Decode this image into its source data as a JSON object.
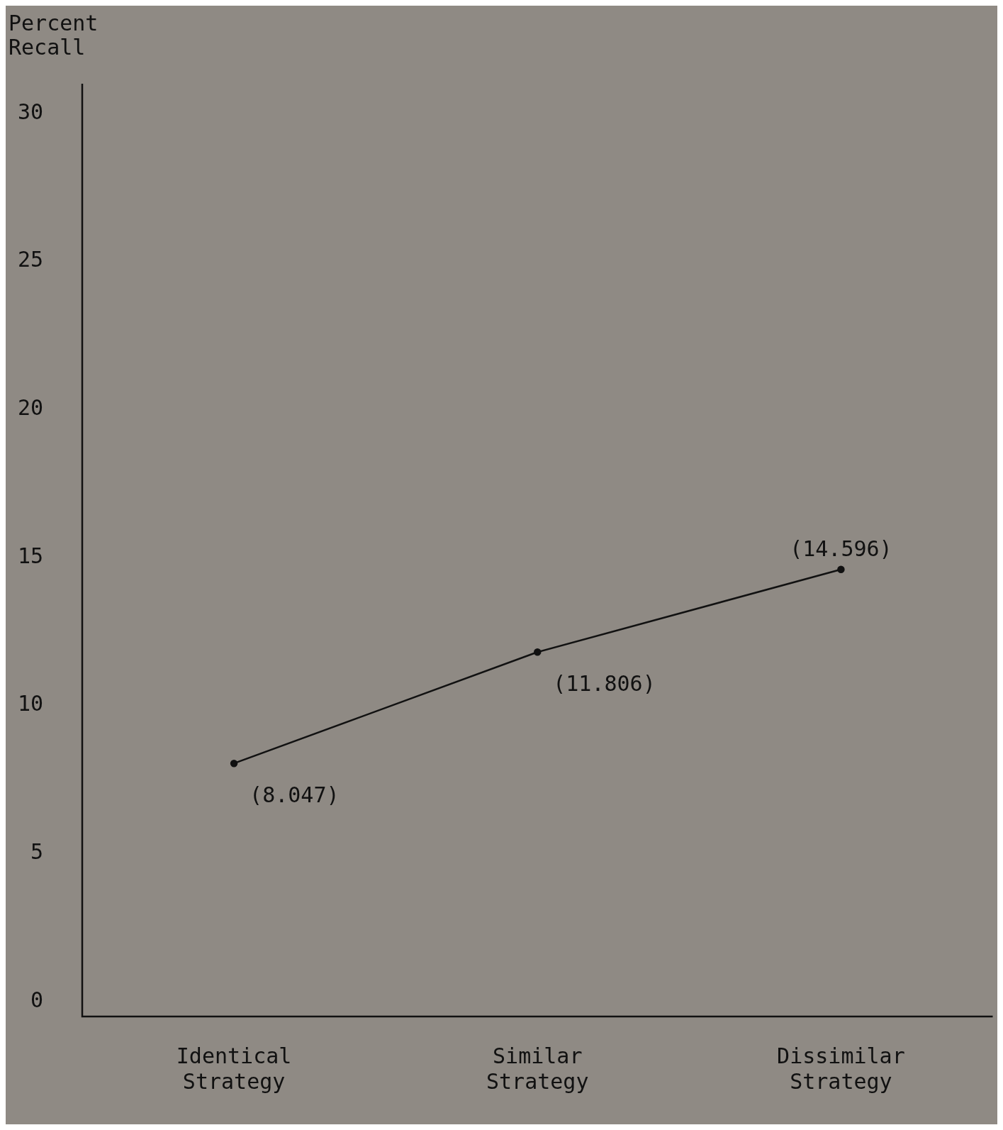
{
  "chart_data": {
    "type": "line",
    "ylabel": "Percent\nRecall",
    "categories": [
      "Identical\nStrategy",
      "Similar\nStrategy",
      "Dissimilar\nStrategy"
    ],
    "series": [
      {
        "color": "#111111",
        "values": [
          8.047,
          11.806,
          14.596
        ],
        "value_labels": [
          "(8.047)",
          "(11.806)",
          "(14.596)"
        ]
      }
    ],
    "ylim": [
      -0.5,
      31
    ],
    "yticks": [
      0,
      5,
      10,
      15,
      20,
      25,
      30
    ],
    "grid": false,
    "legend": false,
    "marker": "circle",
    "line_style": "solid"
  }
}
